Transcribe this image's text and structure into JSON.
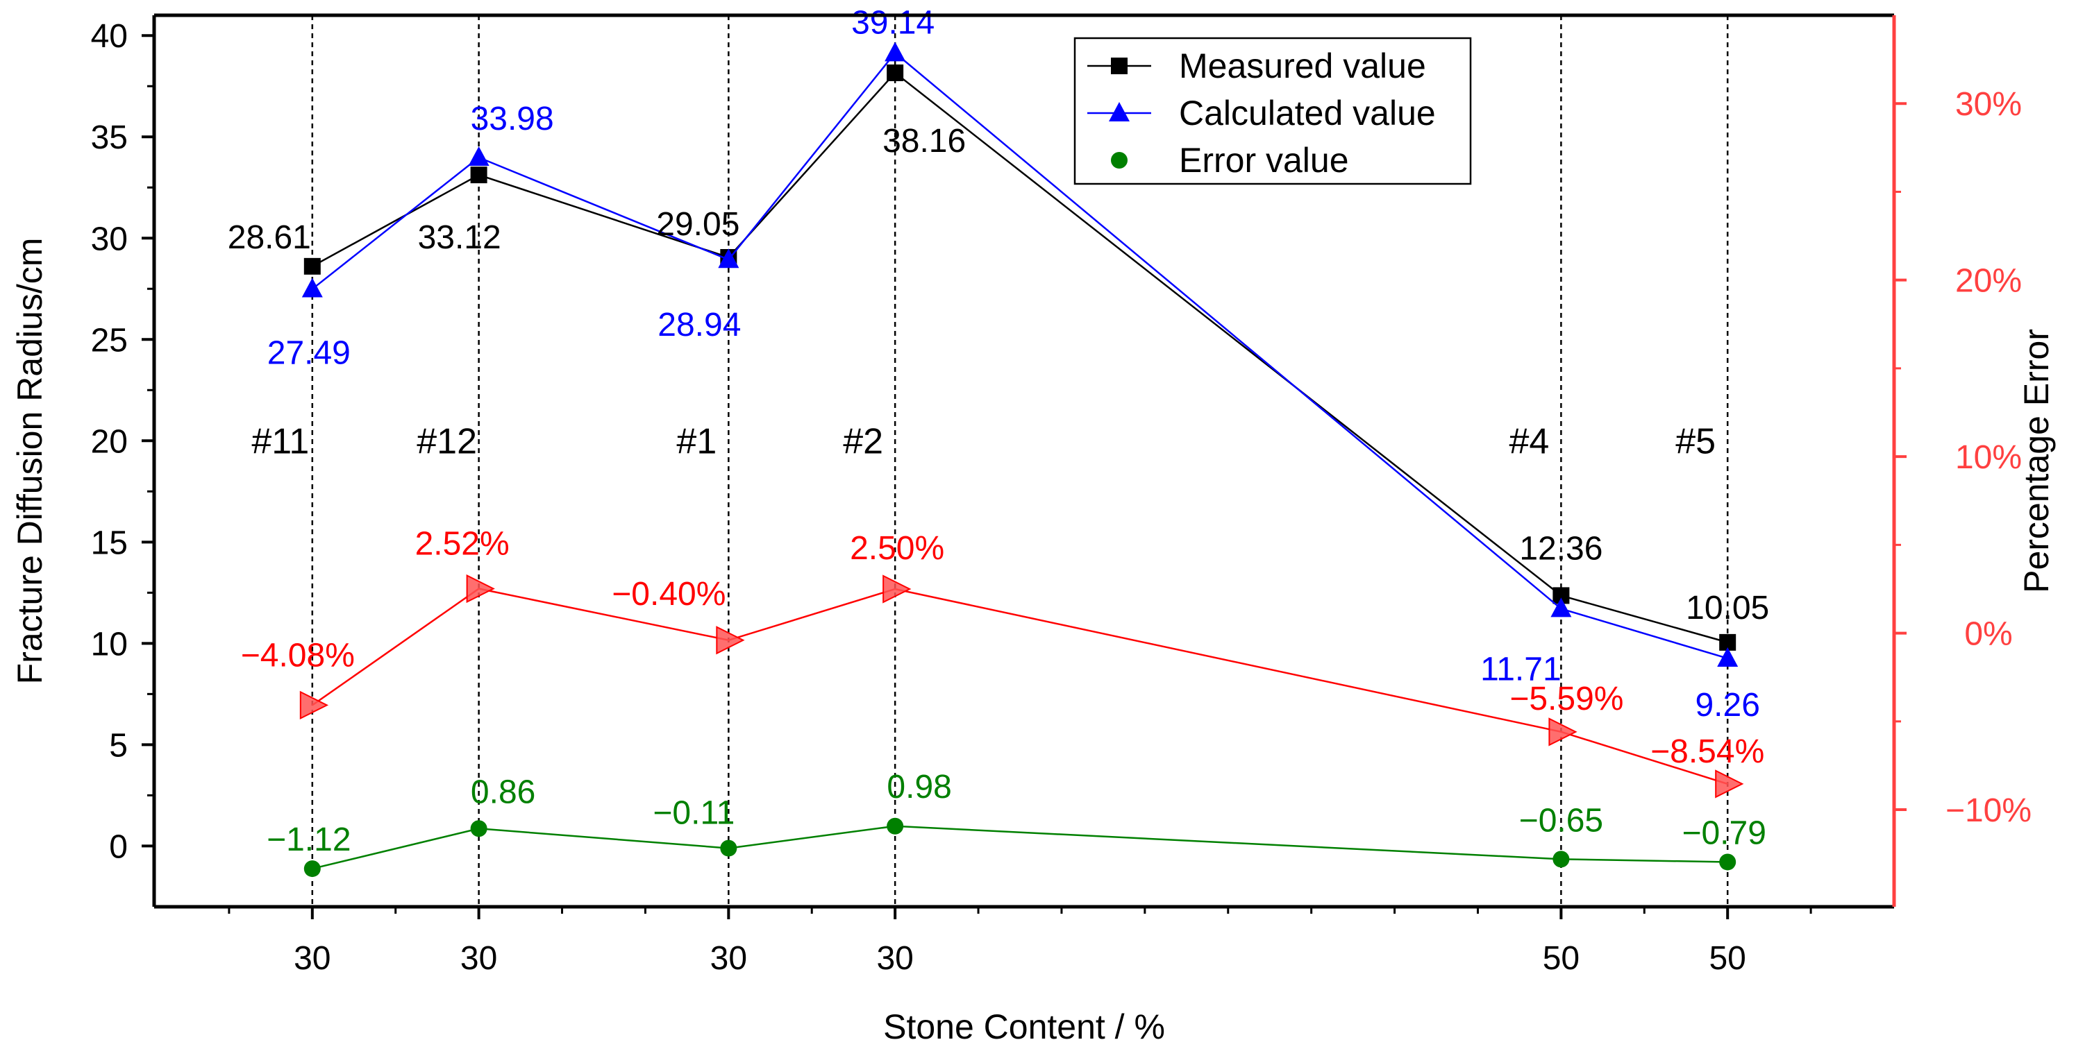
{
  "chart_data": {
    "type": "line",
    "x_positions": [
      1.0,
      2.0,
      3.5,
      4.5,
      8.5,
      9.5
    ],
    "x_range": [
      0.05,
      10.5
    ],
    "x_tick_labels": [
      "30",
      "30",
      "30",
      "30",
      "50",
      "50"
    ],
    "sample_ids": [
      "#11",
      "#12",
      "#1",
      "#2",
      "#4",
      "#5"
    ],
    "sample_label_y": 20,
    "xlabel": "Stone Content / %",
    "ylabel": "Fracture Diffusion Radius/cm",
    "y_range": [
      -3,
      41
    ],
    "y_ticks": [
      0,
      5,
      10,
      15,
      20,
      25,
      30,
      35,
      40
    ],
    "y_tick_labels": [
      "0",
      "5",
      "10",
      "15",
      "20",
      "25",
      "30",
      "35",
      "40"
    ],
    "y2label": "Percentage Error",
    "y2_range": [
      -15.5,
      35.0
    ],
    "y2_ticks": [
      -10,
      0,
      10,
      20,
      30
    ],
    "y2_tick_labels": [
      "−10%",
      "0%",
      "10%",
      "20%",
      "30%"
    ],
    "series": [
      {
        "name": "Measured value",
        "axis": "left",
        "values": [
          28.61,
          33.12,
          29.05,
          38.16,
          12.36,
          10.05
        ],
        "labels": [
          "28.61",
          "33.12",
          "29.05",
          "38.16",
          "12.36",
          "10.05"
        ],
        "marker": "square",
        "color": "#000000",
        "legend": true
      },
      {
        "name": "Calculated value",
        "axis": "left",
        "values": [
          27.49,
          33.98,
          28.94,
          39.14,
          11.71,
          9.26
        ],
        "labels": [
          "27.49",
          "33.98",
          "28.94",
          "39.14",
          "11.71",
          "9.26"
        ],
        "marker": "triangle",
        "color": "#0000ff",
        "legend": true
      },
      {
        "name": "Error value",
        "axis": "left",
        "values": [
          -1.12,
          0.86,
          -0.11,
          0.98,
          -0.65,
          -0.79
        ],
        "labels": [
          "−1.12",
          "0.86",
          "−0.11",
          "0.98",
          "−0.65",
          "−0.79"
        ],
        "marker": "circle",
        "color": "#008000",
        "legend": true
      },
      {
        "name": "Percentage error",
        "axis": "right",
        "values": [
          -4.08,
          2.52,
          -0.4,
          2.5,
          -5.59,
          -8.54
        ],
        "labels": [
          "−4.08%",
          "2.52%",
          "−0.40%",
          "2.50%",
          "−5.59%",
          "−8.54%"
        ],
        "marker": "right-triangle",
        "color": "#ff0000",
        "legend": false
      }
    ],
    "legend_position": "top-center"
  },
  "colors": {
    "axis": "#000000",
    "right_axis": "#ff4040",
    "error_fill": "#ff5555",
    "gridline": "#000000"
  }
}
